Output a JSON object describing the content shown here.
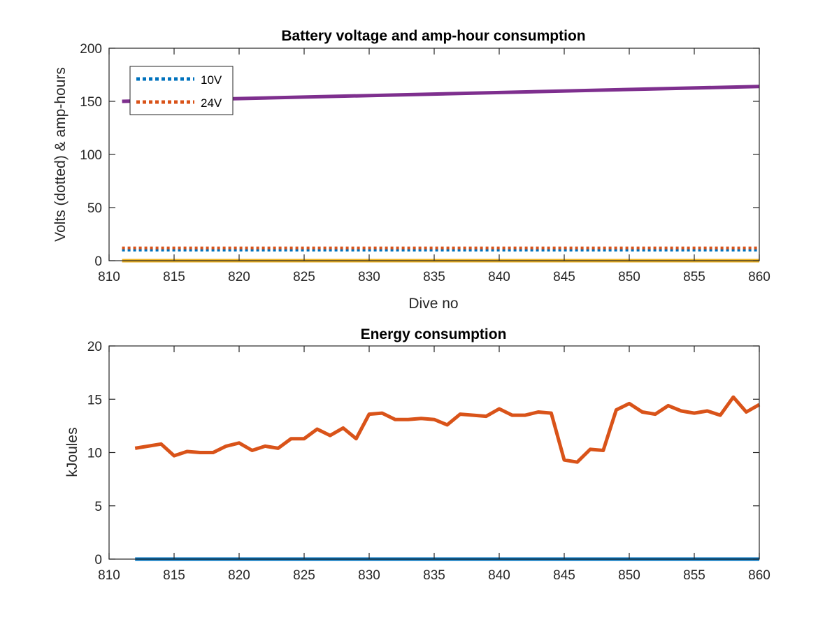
{
  "chart_data": [
    {
      "type": "line",
      "title": "Battery voltage and amp-hour consumption",
      "xlabel": "Dive no",
      "ylabel": "Volts (dotted) & amp-hours",
      "xlim": [
        810,
        860
      ],
      "ylim": [
        0,
        200
      ],
      "xticks": [
        "810",
        "815",
        "820",
        "825",
        "830",
        "835",
        "840",
        "845",
        "850",
        "855",
        "860"
      ],
      "yticks": [
        "0",
        "50",
        "100",
        "150",
        "200"
      ],
      "grid": false,
      "legend_position": "top-left",
      "series": [
        {
          "name": "10V",
          "style": "dotted",
          "color": "#0072BD",
          "x": [
            811,
            860
          ],
          "y": [
            10,
            10
          ]
        },
        {
          "name": "24V",
          "style": "dotted",
          "color": "#D95319",
          "x": [
            811,
            860
          ],
          "y": [
            12,
            12
          ]
        },
        {
          "style": "solid",
          "color": "#EDB120",
          "x": [
            811,
            860
          ],
          "y": [
            0,
            0
          ]
        },
        {
          "style": "solid",
          "color": "#7E2F8E",
          "x": [
            811,
            860
          ],
          "y": [
            150,
            164
          ]
        }
      ]
    },
    {
      "type": "line",
      "title": "Energy consumption",
      "xlabel": "",
      "ylabel": "kJoules",
      "xlim": [
        810,
        860
      ],
      "ylim": [
        0,
        20
      ],
      "xticks": [
        "810",
        "815",
        "820",
        "825",
        "830",
        "835",
        "840",
        "845",
        "850",
        "855",
        "860"
      ],
      "yticks": [
        "0",
        "5",
        "10",
        "15",
        "20"
      ],
      "grid": false,
      "series": [
        {
          "style": "solid",
          "color": "#0072BD",
          "x": [
            812,
            860
          ],
          "y": [
            0,
            0
          ]
        },
        {
          "style": "solid",
          "color": "#D95319",
          "x": [
            812,
            813,
            814,
            815,
            816,
            817,
            818,
            819,
            820,
            821,
            822,
            823,
            824,
            825,
            826,
            827,
            828,
            829,
            830,
            831,
            832,
            833,
            834,
            835,
            836,
            837,
            838,
            839,
            840,
            841,
            842,
            843,
            844,
            845,
            846,
            847,
            848,
            849,
            850,
            851,
            852,
            853,
            854,
            855,
            856,
            857,
            858,
            859,
            860
          ],
          "y": [
            10.4,
            10.6,
            10.8,
            9.7,
            10.1,
            10.0,
            10.0,
            10.6,
            10.9,
            10.2,
            10.6,
            10.4,
            11.3,
            11.3,
            12.2,
            11.6,
            12.3,
            11.3,
            13.6,
            13.7,
            13.1,
            13.1,
            13.2,
            13.1,
            12.6,
            13.6,
            13.5,
            13.4,
            14.1,
            13.5,
            13.5,
            13.8,
            13.7,
            9.3,
            9.1,
            10.3,
            10.2,
            14.0,
            14.6,
            13.8,
            13.6,
            14.4,
            13.9,
            13.7,
            13.9,
            13.5,
            15.2,
            13.8,
            14.5
          ]
        }
      ]
    }
  ]
}
